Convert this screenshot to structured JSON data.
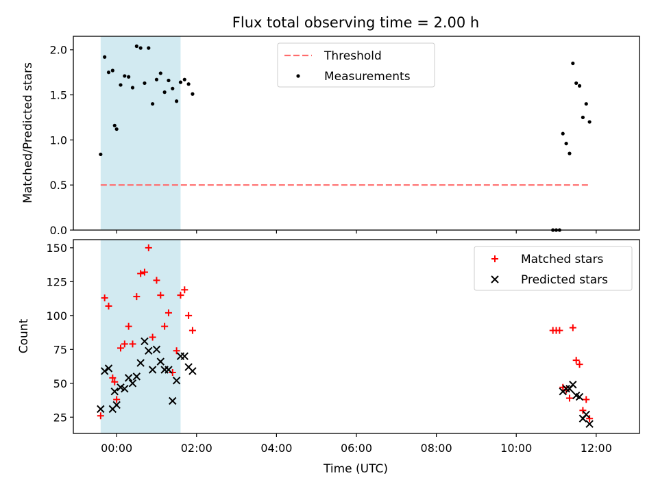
{
  "chart_data": {
    "type": "scatter",
    "title": "Flux total observing time = 2.00 h",
    "xlabel": "Time (UTC)",
    "x_unit": "hours",
    "xlim": [
      "-01:05",
      "13:05"
    ],
    "x_ticks": [
      "00:00",
      "02:00",
      "04:00",
      "06:00",
      "08:00",
      "10:00",
      "12:00"
    ],
    "shaded_region": {
      "start": "-00:24",
      "end": "01:36",
      "color": "#add8e6"
    },
    "panels": [
      {
        "name": "ratio",
        "ylabel": "Matched/Predicted stars",
        "ylim": [
          0.0,
          2.15
        ],
        "y_ticks": [
          "0.0",
          "0.5",
          "1.0",
          "1.5",
          "2.0"
        ],
        "legend": {
          "position": "top-center",
          "entries": [
            "Threshold",
            "Measurements"
          ]
        },
        "threshold": {
          "name": "Threshold",
          "value": 0.5,
          "x_range": [
            "-00:24",
            "11:48"
          ],
          "color": "#ff6b6b"
        },
        "series": [
          {
            "name": "Measurements",
            "color": "#000000",
            "marker": "dot",
            "points": [
              [
                "-00:24",
                0.84
              ],
              [
                "-00:18",
                1.92
              ],
              [
                "-00:12",
                1.75
              ],
              [
                "-00:06",
                1.77
              ],
              [
                "-00:03",
                1.16
              ],
              [
                "00:00",
                1.12
              ],
              [
                "00:06",
                1.61
              ],
              [
                "00:12",
                1.71
              ],
              [
                "00:18",
                1.7
              ],
              [
                "00:24",
                1.58
              ],
              [
                "00:30",
                2.04
              ],
              [
                "00:36",
                2.02
              ],
              [
                "00:42",
                1.63
              ],
              [
                "00:48",
                2.02
              ],
              [
                "00:54",
                1.4
              ],
              [
                "01:00",
                1.67
              ],
              [
                "01:06",
                1.74
              ],
              [
                "01:12",
                1.53
              ],
              [
                "01:18",
                1.66
              ],
              [
                "01:24",
                1.57
              ],
              [
                "01:30",
                1.43
              ],
              [
                "01:36",
                1.64
              ],
              [
                "01:42",
                1.67
              ],
              [
                "01:48",
                1.62
              ],
              [
                "01:54",
                1.51
              ],
              [
                "10:55",
                0.0
              ],
              [
                "11:00",
                0.0
              ],
              [
                "11:05",
                0.0
              ],
              [
                "11:10",
                1.07
              ],
              [
                "11:15",
                0.96
              ],
              [
                "11:20",
                0.85
              ],
              [
                "11:25",
                1.85
              ],
              [
                "11:30",
                1.63
              ],
              [
                "11:35",
                1.6
              ],
              [
                "11:40",
                1.25
              ],
              [
                "11:45",
                1.4
              ],
              [
                "11:50",
                1.2
              ]
            ]
          }
        ]
      },
      {
        "name": "counts",
        "ylabel": "Count",
        "ylim": [
          13,
          156
        ],
        "y_ticks": [
          "25",
          "50",
          "75",
          "100",
          "125",
          "150"
        ],
        "legend": {
          "position": "top-right",
          "entries": [
            "Matched stars",
            "Predicted stars"
          ]
        },
        "series": [
          {
            "name": "Matched stars",
            "color": "#ff0000",
            "marker": "plus",
            "points": [
              [
                "-00:24",
                26
              ],
              [
                "-00:18",
                113
              ],
              [
                "-00:12",
                107
              ],
              [
                "-00:06",
                54
              ],
              [
                "-00:03",
                51
              ],
              [
                "00:00",
                38
              ],
              [
                "00:06",
                76
              ],
              [
                "00:12",
                79
              ],
              [
                "00:18",
                92
              ],
              [
                "00:24",
                79
              ],
              [
                "00:30",
                114
              ],
              [
                "00:36",
                131
              ],
              [
                "00:42",
                132
              ],
              [
                "00:48",
                150
              ],
              [
                "00:54",
                84
              ],
              [
                "01:00",
                126
              ],
              [
                "01:06",
                115
              ],
              [
                "01:12",
                92
              ],
              [
                "01:18",
                102
              ],
              [
                "01:24",
                58
              ],
              [
                "01:30",
                74
              ],
              [
                "01:36",
                115
              ],
              [
                "01:42",
                119
              ],
              [
                "01:48",
                100
              ],
              [
                "01:54",
                89
              ],
              [
                "10:55",
                89
              ],
              [
                "11:00",
                89
              ],
              [
                "11:05",
                89
              ],
              [
                "11:10",
                47
              ],
              [
                "11:15",
                45
              ],
              [
                "11:20",
                39
              ],
              [
                "11:25",
                91
              ],
              [
                "11:30",
                67
              ],
              [
                "11:35",
                64
              ],
              [
                "11:40",
                30
              ],
              [
                "11:45",
                38
              ],
              [
                "11:50",
                24
              ]
            ]
          },
          {
            "name": "Predicted stars",
            "color": "#000000",
            "marker": "x",
            "points": [
              [
                "-00:24",
                31
              ],
              [
                "-00:18",
                59
              ],
              [
                "-00:12",
                61
              ],
              [
                "-00:06",
                31
              ],
              [
                "-00:03",
                44
              ],
              [
                "00:00",
                34
              ],
              [
                "00:06",
                47
              ],
              [
                "00:12",
                46
              ],
              [
                "00:18",
                54
              ],
              [
                "00:24",
                50
              ],
              [
                "00:30",
                55
              ],
              [
                "00:36",
                65
              ],
              [
                "00:42",
                81
              ],
              [
                "00:48",
                74
              ],
              [
                "00:54",
                60
              ],
              [
                "01:00",
                75
              ],
              [
                "01:06",
                66
              ],
              [
                "01:12",
                60
              ],
              [
                "01:18",
                60
              ],
              [
                "01:24",
                37
              ],
              [
                "01:30",
                52
              ],
              [
                "01:36",
                70
              ],
              [
                "01:42",
                70
              ],
              [
                "01:48",
                62
              ],
              [
                "01:54",
                59
              ],
              [
                "11:10",
                44
              ],
              [
                "11:15",
                46
              ],
              [
                "11:20",
                46
              ],
              [
                "11:25",
                49
              ],
              [
                "11:30",
                41
              ],
              [
                "11:35",
                40
              ],
              [
                "11:40",
                24
              ],
              [
                "11:45",
                27
              ],
              [
                "11:50",
                20
              ]
            ]
          }
        ]
      }
    ]
  }
}
